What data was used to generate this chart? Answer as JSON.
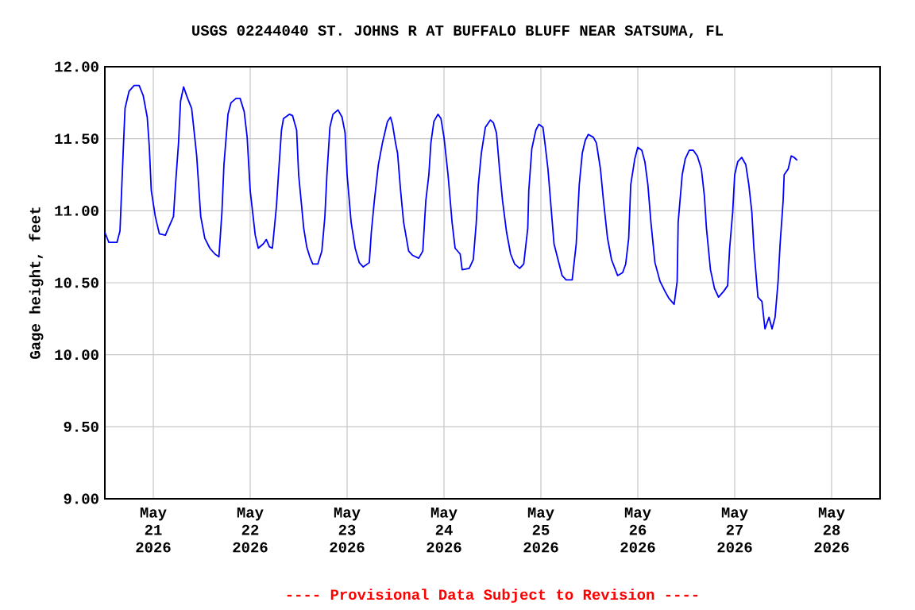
{
  "chart_data": {
    "type": "line",
    "title": "USGS 02244040 ST. JOHNS R AT BUFFALO BLUFF NEAR SATSUMA, FL",
    "ylabel": "Gage height, feet",
    "annotations": [
      "---- Provisional Data Subject to Revision ----"
    ],
    "xlim": [
      "2026-05-20T12:00",
      "2026-05-28T12:00"
    ],
    "ylim": [
      9,
      12
    ],
    "xticks": [
      {
        "value": "2026-05-21",
        "label": "May 21 2026"
      },
      {
        "value": "2026-05-22",
        "label": "May 22 2026"
      },
      {
        "value": "2026-05-23",
        "label": "May 23 2026"
      },
      {
        "value": "2026-05-24",
        "label": "May 24 2026"
      },
      {
        "value": "2026-05-25",
        "label": "May 25 2026"
      },
      {
        "value": "2026-05-26",
        "label": "May 26 2026"
      },
      {
        "value": "2026-05-27",
        "label": "May 27 2026"
      },
      {
        "value": "2026-05-28",
        "label": "May 28 2026"
      }
    ],
    "yticks": [
      {
        "value": 9,
        "label": "9.00"
      },
      {
        "value": 9.5,
        "label": "9.50"
      },
      {
        "value": 10,
        "label": "10.00"
      },
      {
        "value": 10.5,
        "label": "10.50"
      },
      {
        "value": 11,
        "label": "11.00"
      },
      {
        "value": 11.5,
        "label": "11.50"
      },
      {
        "value": 12,
        "label": "12.00"
      }
    ],
    "grid": true,
    "x": [
      "2026-05-20T12:00",
      "2026-05-20T13:00",
      "2026-05-20T15:00",
      "2026-05-20T15:45",
      "2026-05-20T16:30",
      "2026-05-20T17:00",
      "2026-05-20T18:00",
      "2026-05-20T19:15",
      "2026-05-20T20:30",
      "2026-05-20T21:30",
      "2026-05-20T22:30",
      "2026-05-20T23:00",
      "2026-05-20T23:30",
      "2026-05-21T00:30",
      "2026-05-21T01:30",
      "2026-05-21T03:00",
      "2026-05-21T03:45",
      "2026-05-21T05:00",
      "2026-05-21T05:30",
      "2026-05-21T06:15",
      "2026-05-21T06:45",
      "2026-05-21T07:30",
      "2026-05-21T08:30",
      "2026-05-21T09:30",
      "2026-05-21T10:00",
      "2026-05-21T10:45",
      "2026-05-21T11:45",
      "2026-05-21T12:45",
      "2026-05-21T14:00",
      "2026-05-21T15:15",
      "2026-05-21T16:15",
      "2026-05-21T17:00",
      "2026-05-21T17:30",
      "2026-05-21T18:30",
      "2026-05-21T19:15",
      "2026-05-21T20:30",
      "2026-05-21T21:30",
      "2026-05-21T22:30",
      "2026-05-21T23:15",
      "2026-05-22T00:00",
      "2026-05-22T01:15",
      "2026-05-22T02:00",
      "2026-05-22T03:15",
      "2026-05-22T04:00",
      "2026-05-22T04:45",
      "2026-05-22T05:30",
      "2026-05-22T06:30",
      "2026-05-22T07:00",
      "2026-05-22T07:45",
      "2026-05-22T08:15",
      "2026-05-22T09:45",
      "2026-05-22T10:30",
      "2026-05-22T11:30",
      "2026-05-22T12:00",
      "2026-05-22T12:45",
      "2026-05-22T13:15",
      "2026-05-22T14:00",
      "2026-05-22T14:45",
      "2026-05-22T15:30",
      "2026-05-22T16:45",
      "2026-05-22T17:45",
      "2026-05-22T18:30",
      "2026-05-22T19:00",
      "2026-05-22T19:45",
      "2026-05-22T20:30",
      "2026-05-22T21:45",
      "2026-05-22T22:45",
      "2026-05-22T23:30",
      "2026-05-23T00:00",
      "2026-05-23T01:00",
      "2026-05-23T02:00",
      "2026-05-23T03:00",
      "2026-05-23T04:00",
      "2026-05-23T05:30",
      "2026-05-23T06:00",
      "2026-05-23T06:45",
      "2026-05-23T07:45",
      "2026-05-23T08:45",
      "2026-05-23T09:15",
      "2026-05-23T10:00",
      "2026-05-23T10:45",
      "2026-05-23T11:15",
      "2026-05-23T12:00",
      "2026-05-23T12:30",
      "2026-05-23T13:15",
      "2026-05-23T14:00",
      "2026-05-23T15:15",
      "2026-05-23T16:15",
      "2026-05-23T17:45",
      "2026-05-23T18:45",
      "2026-05-23T19:30",
      "2026-05-23T20:15",
      "2026-05-23T20:45",
      "2026-05-23T21:30",
      "2026-05-23T22:30",
      "2026-05-23T23:15",
      "2026-05-24T00:00",
      "2026-05-24T01:00",
      "2026-05-24T02:00",
      "2026-05-24T02:45",
      "2026-05-24T04:00",
      "2026-05-24T04:30",
      "2026-05-24T06:15",
      "2026-05-24T07:15",
      "2026-05-24T08:00",
      "2026-05-24T08:30",
      "2026-05-24T09:15",
      "2026-05-24T10:15",
      "2026-05-24T11:30",
      "2026-05-24T12:15",
      "2026-05-24T13:00",
      "2026-05-24T13:45",
      "2026-05-24T14:30",
      "2026-05-24T15:30",
      "2026-05-24T16:30",
      "2026-05-24T17:30",
      "2026-05-24T18:45",
      "2026-05-24T19:45",
      "2026-05-24T20:45",
      "2026-05-24T21:00",
      "2026-05-24T21:45",
      "2026-05-24T22:45",
      "2026-05-24T23:30",
      "2026-05-25T00:30",
      "2026-05-25T01:00",
      "2026-05-25T01:45",
      "2026-05-25T02:30",
      "2026-05-25T03:15",
      "2026-05-25T04:15",
      "2026-05-25T05:15",
      "2026-05-25T06:15",
      "2026-05-25T07:45",
      "2026-05-25T08:45",
      "2026-05-25T09:30",
      "2026-05-25T10:15",
      "2026-05-25T11:00",
      "2026-05-25T11:45",
      "2026-05-25T13:00",
      "2026-05-25T13:45",
      "2026-05-25T14:45",
      "2026-05-25T15:30",
      "2026-05-25T16:30",
      "2026-05-25T17:30",
      "2026-05-25T19:00",
      "2026-05-25T20:15",
      "2026-05-25T21:00",
      "2026-05-25T21:45",
      "2026-05-25T22:15",
      "2026-05-25T23:15",
      "2026-05-26T00:00",
      "2026-05-26T01:00",
      "2026-05-26T01:45",
      "2026-05-26T02:30",
      "2026-05-26T03:15",
      "2026-05-26T04:15",
      "2026-05-26T05:30",
      "2026-05-26T06:45",
      "2026-05-26T07:45",
      "2026-05-26T09:00",
      "2026-05-26T09:45",
      "2026-05-26T10:00",
      "2026-05-26T11:00",
      "2026-05-26T11:45",
      "2026-05-26T12:45",
      "2026-05-26T13:45",
      "2026-05-26T14:45",
      "2026-05-26T15:45",
      "2026-05-26T16:30",
      "2026-05-26T17:00",
      "2026-05-26T18:00",
      "2026-05-26T19:00",
      "2026-05-26T20:00",
      "2026-05-26T21:15",
      "2026-05-26T22:15",
      "2026-05-26T22:45",
      "2026-05-26T23:30",
      "2026-05-27T00:00",
      "2026-05-27T00:45",
      "2026-05-27T01:45",
      "2026-05-27T02:45",
      "2026-05-27T03:30",
      "2026-05-27T04:15",
      "2026-05-27T04:45",
      "2026-05-27T05:45",
      "2026-05-27T06:45",
      "2026-05-27T07:30",
      "2026-05-27T08:30",
      "2026-05-27T09:15",
      "2026-05-27T10:00",
      "2026-05-27T10:45",
      "2026-05-27T11:15",
      "2026-05-27T12:00",
      "2026-05-27T12:15",
      "2026-05-27T13:15",
      "2026-05-27T14:00",
      "2026-05-27T14:45",
      "2026-05-27T15:30"
    ],
    "series": [
      {
        "color": "#0000ff",
        "values": [
          10.85,
          10.78,
          10.78,
          10.86,
          11.38,
          11.71,
          11.83,
          11.87,
          11.87,
          11.8,
          11.65,
          11.45,
          11.14,
          10.96,
          10.84,
          10.83,
          10.88,
          10.96,
          11.18,
          11.47,
          11.76,
          11.86,
          11.78,
          11.71,
          11.58,
          11.38,
          10.96,
          10.81,
          10.74,
          10.7,
          10.68,
          10.99,
          11.32,
          11.67,
          11.75,
          11.78,
          11.78,
          11.69,
          11.51,
          11.14,
          10.83,
          10.74,
          10.77,
          10.8,
          10.75,
          10.74,
          11.03,
          11.25,
          11.56,
          11.64,
          11.67,
          11.66,
          11.56,
          11.25,
          11.03,
          10.88,
          10.75,
          10.68,
          10.63,
          10.63,
          10.72,
          10.96,
          11.25,
          11.58,
          11.67,
          11.7,
          11.65,
          11.54,
          11.25,
          10.92,
          10.74,
          10.64,
          10.61,
          10.64,
          10.85,
          11.07,
          11.32,
          11.47,
          11.53,
          11.62,
          11.65,
          11.6,
          11.47,
          11.4,
          11.14,
          10.92,
          10.72,
          10.69,
          10.67,
          10.72,
          11.07,
          11.25,
          11.47,
          11.62,
          11.67,
          11.64,
          11.51,
          11.25,
          10.92,
          10.74,
          10.7,
          10.59,
          10.6,
          10.66,
          10.92,
          11.18,
          11.4,
          11.58,
          11.63,
          11.61,
          11.54,
          11.29,
          11.07,
          10.85,
          10.7,
          10.63,
          10.6,
          10.63,
          10.88,
          11.14,
          11.43,
          11.56,
          11.6,
          11.58,
          11.47,
          11.29,
          11.03,
          10.77,
          10.66,
          10.55,
          10.52,
          10.52,
          10.77,
          11.18,
          11.4,
          11.49,
          11.53,
          11.51,
          11.47,
          11.29,
          11.07,
          10.81,
          10.66,
          10.55,
          10.57,
          10.63,
          10.81,
          11.18,
          11.36,
          11.44,
          11.42,
          11.34,
          11.18,
          10.92,
          10.64,
          10.51,
          10.44,
          10.39,
          10.35,
          10.51,
          10.92,
          11.25,
          11.36,
          11.42,
          11.42,
          11.38,
          11.29,
          11.1,
          10.88,
          10.59,
          10.46,
          10.4,
          10.44,
          10.48,
          10.74,
          10.99,
          11.25,
          11.34,
          11.37,
          11.32,
          11.18,
          10.99,
          10.74,
          10.4,
          10.37,
          10.18,
          10.26,
          10.18,
          10.26,
          10.51,
          10.77,
          11.07,
          11.25,
          11.29,
          11.38,
          11.37,
          11.35
        ]
      }
    ]
  }
}
